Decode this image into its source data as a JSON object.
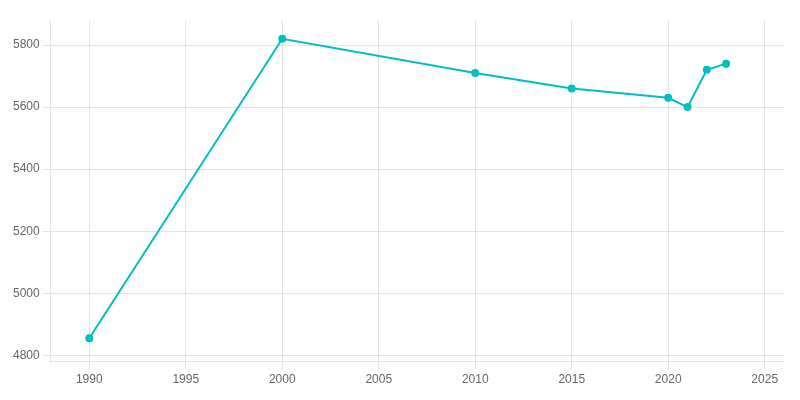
{
  "chart_data": {
    "type": "line",
    "x": [
      1990,
      2000,
      2010,
      2015,
      2020,
      2021,
      2022,
      2023
    ],
    "values": [
      4855,
      5820,
      5710,
      5660,
      5630,
      5600,
      5720,
      5740
    ],
    "color": "#00BFBF",
    "marker": "circle",
    "xlim": [
      1988,
      2026
    ],
    "ylim": [
      4780,
      5880
    ],
    "xticks": [
      1990,
      1995,
      2000,
      2005,
      2010,
      2015,
      2020,
      2025
    ],
    "yticks": [
      4800,
      5000,
      5200,
      5400,
      5600,
      5800
    ],
    "grid": true
  }
}
